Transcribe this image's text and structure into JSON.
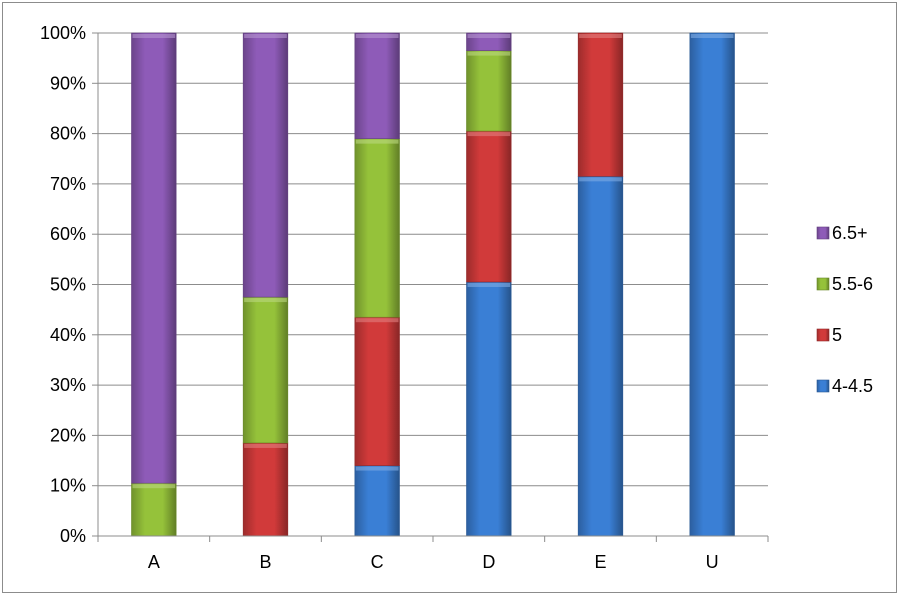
{
  "chart_data": {
    "type": "bar",
    "stacked": true,
    "percent": true,
    "categories": [
      "A",
      "B",
      "C",
      "D",
      "E",
      "U"
    ],
    "series": [
      {
        "name": "4-4.5",
        "color": "#3a7fd5",
        "values": [
          0,
          0,
          14,
          50.5,
          71.5,
          100
        ]
      },
      {
        "name": "5",
        "color": "#d13a3a",
        "values": [
          0,
          18.5,
          29.5,
          30,
          28.5,
          0
        ]
      },
      {
        "name": "5.5-6",
        "color": "#95c23a",
        "values": [
          10.5,
          29,
          35.5,
          16,
          0,
          0
        ]
      },
      {
        "name": "6.5+",
        "color": "#8e5bb8",
        "values": [
          89.5,
          52.5,
          21,
          3.5,
          0,
          0
        ]
      }
    ],
    "y_ticks": [
      "0%",
      "10%",
      "20%",
      "30%",
      "40%",
      "50%",
      "60%",
      "70%",
      "80%",
      "90%",
      "100%"
    ],
    "ylim": [
      0,
      100
    ],
    "grid": true,
    "legend": {
      "position": "right",
      "order": [
        "6.5+",
        "5.5-6",
        "5",
        "4-4.5"
      ]
    },
    "title": "",
    "xlabel": "",
    "ylabel": ""
  }
}
